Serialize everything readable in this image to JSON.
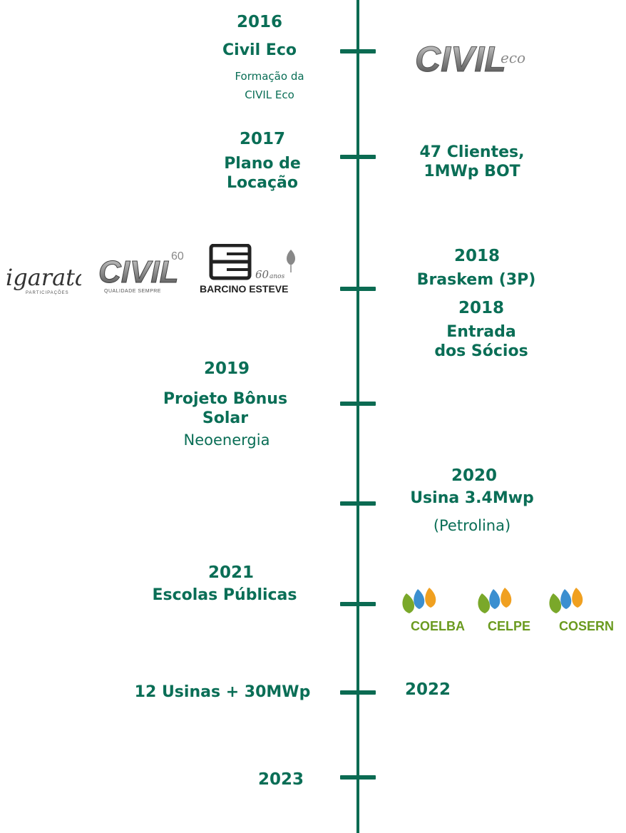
{
  "colors": {
    "accent": "#0b6b52",
    "text": "#0a6e56",
    "grey": "#777777",
    "dark": "#2b2b2b",
    "dist_green": "#6a9a1f"
  },
  "timeline": {
    "e2016": {
      "year": "2016",
      "title": "Civil Eco",
      "desc_line1": "Formação da",
      "desc_line2": "CIVIL Eco"
    },
    "e2017": {
      "year": "2017",
      "title_line1": "Plano de",
      "title_line2": "Locação",
      "right_line1": "47 Clientes,",
      "right_line2": "1MWp BOT"
    },
    "e2018a": {
      "year": "2018",
      "title": "Braskem (3P)"
    },
    "e2018b": {
      "year": "2018",
      "title_line1": "Entrada",
      "title_line2": "dos Sócios"
    },
    "e2019": {
      "year": "2019",
      "title_line1": "Projeto Bônus",
      "title_line2": "Solar",
      "subtitle": "Neoenergia"
    },
    "e2020": {
      "year": "2020",
      "title": "Usina 3.4Mwp",
      "subtitle": "(Petrolina)"
    },
    "e2021": {
      "year": "2021",
      "title": "Escolas Públicas"
    },
    "e2022": {
      "left": "12 Usinas + 30MWp",
      "year": "2022"
    },
    "e2023": {
      "year": "2023"
    }
  },
  "logos": {
    "civil_eco": {
      "main": "CIVIL",
      "script": "eco"
    },
    "igarata": {
      "main": "igaratá",
      "sub": "PARTICIPAÇÕES"
    },
    "civil60": {
      "main": "CIVIL",
      "num": "60",
      "sub": "QUALIDADE SEMPRE"
    },
    "barcino": {
      "main": "BARCINO ESTEVE",
      "num": "60",
      "anos": "anos"
    },
    "coelba": "COELBA",
    "celpe": "CELPE",
    "cosern": "COSERN"
  }
}
